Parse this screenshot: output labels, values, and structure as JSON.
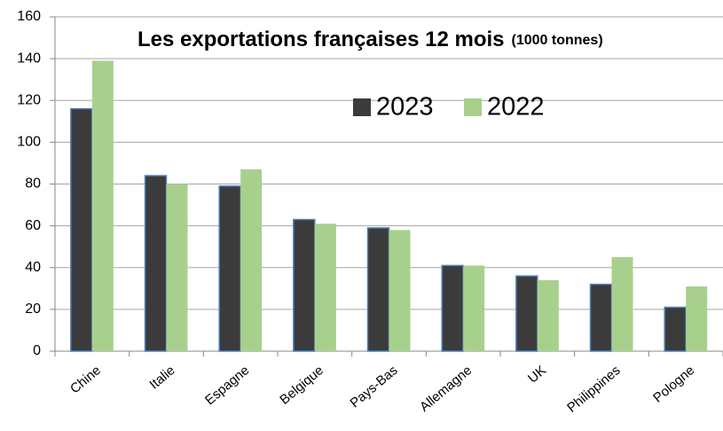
{
  "chart_data": {
    "type": "bar",
    "title": "Les exportations françaises 12 mois",
    "subtitle": "(1000 tonnes)",
    "categories": [
      "Chine",
      "Italie",
      "Espagne",
      "Belgique",
      "Pays-Bas",
      "Allemagne",
      "UK",
      "Philippines",
      "Pologne"
    ],
    "series": [
      {
        "name": "2023",
        "color": "#3b3b3b",
        "values": [
          116,
          84,
          79,
          63,
          59,
          41,
          36,
          32,
          21
        ]
      },
      {
        "name": "2022",
        "color": "#a8d08d",
        "values": [
          139,
          80,
          87,
          61,
          58,
          41,
          34,
          45,
          31
        ]
      }
    ],
    "ylim": [
      0,
      160
    ],
    "yticks": [
      0,
      20,
      40,
      60,
      80,
      100,
      120,
      140,
      160
    ],
    "grid": true
  }
}
